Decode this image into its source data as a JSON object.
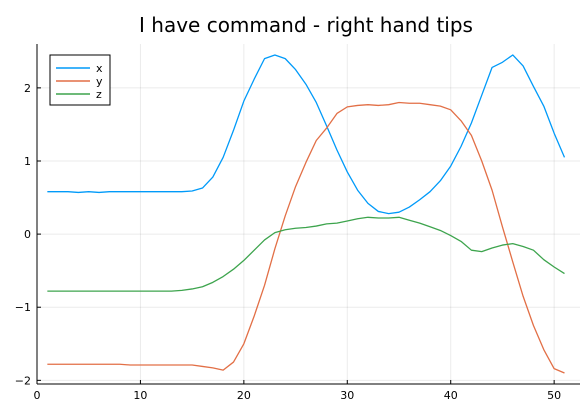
{
  "chart_data": {
    "type": "line",
    "title": "I have command - right hand tips",
    "xlabel": "",
    "ylabel": "",
    "xlim": [
      0,
      52.5
    ],
    "ylim": [
      -2.05,
      2.6
    ],
    "xticks": [
      0,
      10,
      20,
      30,
      40,
      50
    ],
    "yticks": [
      -2,
      -1,
      0,
      1,
      2
    ],
    "xtick_labels": [
      "0",
      "10",
      "20",
      "30",
      "40",
      "50"
    ],
    "ytick_labels": [
      "−2",
      "−1",
      "0",
      "1",
      "2"
    ],
    "grid": true,
    "legend_position": "top-left",
    "x": [
      1,
      2,
      3,
      4,
      5,
      6,
      7,
      8,
      9,
      10,
      11,
      12,
      13,
      14,
      15,
      16,
      17,
      18,
      19,
      20,
      21,
      22,
      23,
      24,
      25,
      26,
      27,
      28,
      29,
      30,
      31,
      32,
      33,
      34,
      35,
      36,
      37,
      38,
      39,
      40,
      41,
      42,
      43,
      44,
      45,
      46,
      47,
      48,
      49,
      50,
      51
    ],
    "series": [
      {
        "name": "x",
        "color": "#009AF9",
        "values": [
          0.58,
          0.58,
          0.58,
          0.57,
          0.58,
          0.57,
          0.58,
          0.58,
          0.58,
          0.58,
          0.58,
          0.58,
          0.58,
          0.58,
          0.59,
          0.63,
          0.78,
          1.05,
          1.42,
          1.82,
          2.12,
          2.4,
          2.45,
          2.4,
          2.25,
          2.05,
          1.8,
          1.48,
          1.15,
          0.85,
          0.6,
          0.42,
          0.31,
          0.28,
          0.3,
          0.37,
          0.47,
          0.58,
          0.73,
          0.93,
          1.2,
          1.52,
          1.9,
          2.28,
          2.35,
          2.45,
          2.3,
          2.02,
          1.75,
          1.38,
          1.05
        ]
      },
      {
        "name": "y",
        "color": "#E26F46",
        "values": [
          -1.78,
          -1.78,
          -1.78,
          -1.78,
          -1.78,
          -1.78,
          -1.78,
          -1.78,
          -1.79,
          -1.79,
          -1.79,
          -1.79,
          -1.79,
          -1.79,
          -1.79,
          -1.81,
          -1.83,
          -1.86,
          -1.75,
          -1.5,
          -1.12,
          -0.7,
          -0.2,
          0.25,
          0.65,
          0.98,
          1.28,
          1.45,
          1.65,
          1.74,
          1.76,
          1.77,
          1.76,
          1.77,
          1.8,
          1.79,
          1.79,
          1.77,
          1.75,
          1.7,
          1.55,
          1.35,
          1.0,
          0.6,
          0.1,
          -0.38,
          -0.85,
          -1.25,
          -1.58,
          -1.84,
          -1.9
        ]
      },
      {
        "name": "z",
        "color": "#3DA44D",
        "values": [
          -0.78,
          -0.78,
          -0.78,
          -0.78,
          -0.78,
          -0.78,
          -0.78,
          -0.78,
          -0.78,
          -0.78,
          -0.78,
          -0.78,
          -0.78,
          -0.77,
          -0.75,
          -0.72,
          -0.66,
          -0.58,
          -0.48,
          -0.36,
          -0.22,
          -0.08,
          0.02,
          0.06,
          0.08,
          0.09,
          0.11,
          0.14,
          0.15,
          0.18,
          0.21,
          0.23,
          0.22,
          0.22,
          0.23,
          0.19,
          0.15,
          0.1,
          0.05,
          -0.02,
          -0.1,
          -0.22,
          -0.24,
          -0.19,
          -0.15,
          -0.13,
          -0.17,
          -0.22,
          -0.35,
          -0.45,
          -0.54
        ]
      }
    ]
  }
}
